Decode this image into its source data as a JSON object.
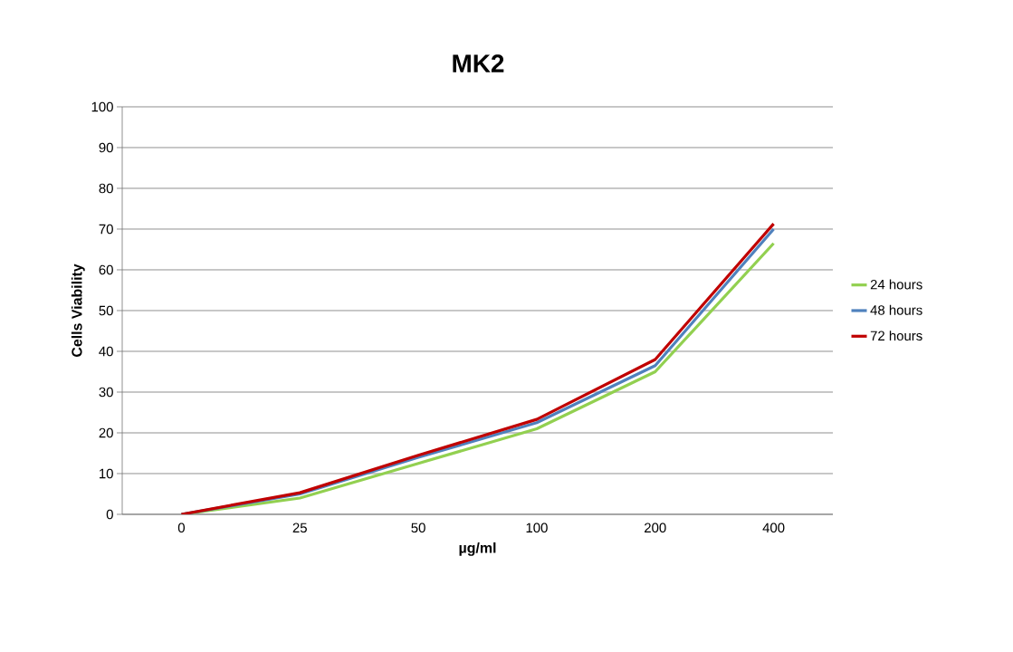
{
  "chart_data": {
    "type": "line",
    "title": "MK2",
    "xlabel": "µg/ml",
    "ylabel": "Cells Viability",
    "categories": [
      "0",
      "25",
      "50",
      "100",
      "200",
      "400"
    ],
    "series": [
      {
        "name": "24 hours",
        "color": "#92d050",
        "values": [
          0,
          4,
          12.5,
          21,
          35,
          66.5
        ]
      },
      {
        "name": "48 hours",
        "color": "#4f81bd",
        "values": [
          0,
          5,
          14,
          22.5,
          36.5,
          70
        ]
      },
      {
        "name": "72 hours",
        "color": "#c00000",
        "values": [
          0,
          5.3,
          14.5,
          23.3,
          38,
          71.3
        ]
      }
    ],
    "ylim": [
      0,
      100
    ],
    "yticks": [
      0,
      10,
      20,
      30,
      40,
      50,
      60,
      70,
      80,
      90,
      100
    ],
    "grid": "y",
    "legend": "right",
    "marker": "none",
    "line_style": "solid"
  }
}
